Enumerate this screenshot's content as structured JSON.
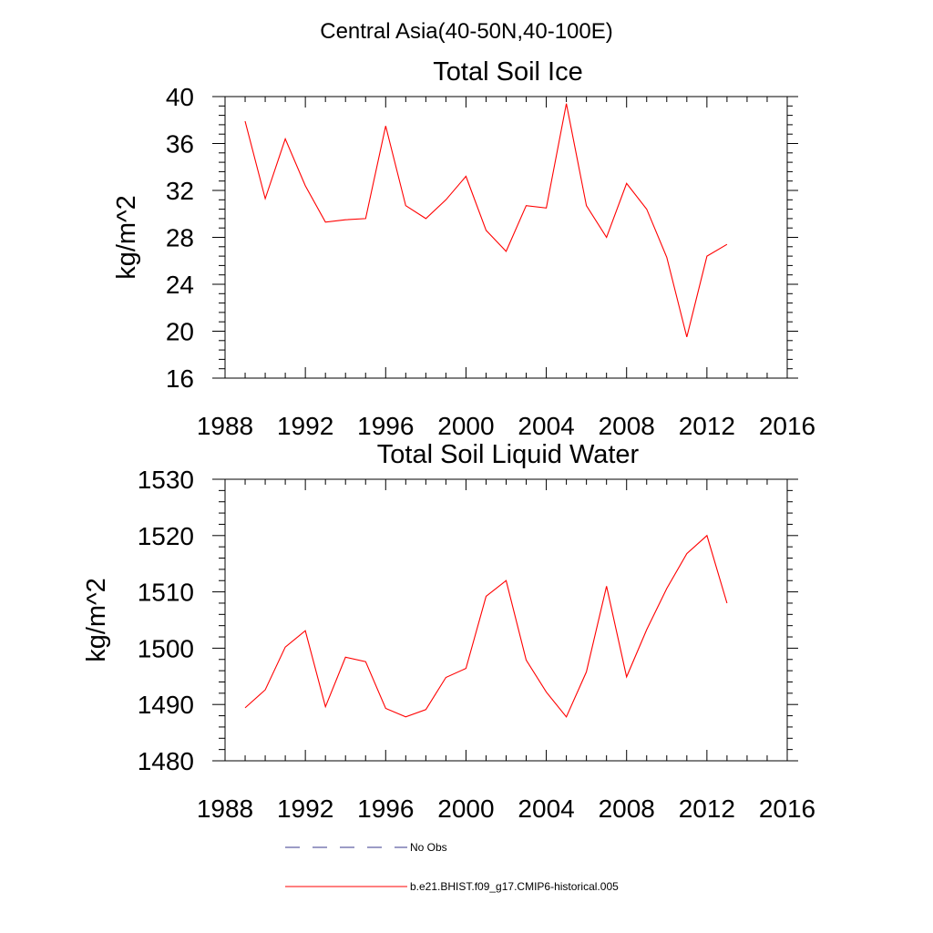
{
  "figure": {
    "title": "Central Asia(40-50N,40-100E)"
  },
  "legend": [
    {
      "label": "No Obs",
      "color": "#3a3a8c",
      "style": "dashed"
    },
    {
      "label": "b.e21.BHIST.f09_g17.CMIP6-historical.005",
      "color": "#ff0000",
      "style": "solid"
    }
  ],
  "chart_data": [
    {
      "type": "line",
      "title": "Total Soil Ice",
      "xlabel": "",
      "ylabel": "kg/m^2",
      "xlim": [
        1988,
        2016
      ],
      "ylim": [
        16,
        40
      ],
      "xticks": [
        1988,
        1992,
        1996,
        2000,
        2004,
        2008,
        2012,
        2016
      ],
      "yticks": [
        16,
        20,
        24,
        28,
        32,
        36,
        40
      ],
      "grid": false,
      "series": [
        {
          "name": "b.e21.BHIST.f09_g17.CMIP6-historical.005",
          "color": "#ff0000",
          "x": [
            1989,
            1990,
            1991,
            1992,
            1993,
            1994,
            1995,
            1996,
            1997,
            1998,
            1999,
            2000,
            2001,
            2002,
            2003,
            2004,
            2005,
            2006,
            2007,
            2008,
            2009,
            2010,
            2011,
            2012,
            2013
          ],
          "y": [
            37.9,
            31.3,
            36.4,
            32.4,
            29.3,
            29.5,
            29.6,
            37.5,
            30.7,
            29.6,
            31.2,
            33.2,
            28.6,
            26.8,
            30.7,
            30.5,
            39.4,
            30.7,
            28.0,
            32.6,
            30.4,
            26.3,
            19.5,
            26.4,
            27.4
          ]
        }
      ]
    },
    {
      "type": "line",
      "title": "Total Soil Liquid Water",
      "xlabel": "",
      "ylabel": "kg/m^2",
      "xlim": [
        1988,
        2016
      ],
      "ylim": [
        1480,
        1530
      ],
      "xticks": [
        1988,
        1992,
        1996,
        2000,
        2004,
        2008,
        2012,
        2016
      ],
      "yticks": [
        1480,
        1490,
        1500,
        1510,
        1520,
        1530
      ],
      "grid": false,
      "series": [
        {
          "name": "b.e21.BHIST.f09_g17.CMIP6-historical.005",
          "color": "#ff0000",
          "x": [
            1989,
            1990,
            1991,
            1992,
            1993,
            1994,
            1995,
            1996,
            1997,
            1998,
            1999,
            2000,
            2001,
            2002,
            2003,
            2004,
            2005,
            2006,
            2007,
            2008,
            2009,
            2010,
            2011,
            2012,
            2013
          ],
          "y": [
            1489.4,
            1492.6,
            1500.2,
            1503.1,
            1489.6,
            1498.4,
            1497.6,
            1489.3,
            1487.8,
            1489.1,
            1494.8,
            1496.4,
            1509.2,
            1512.0,
            1497.9,
            1492.2,
            1487.8,
            1495.8,
            1511.0,
            1494.9,
            1503.3,
            1510.6,
            1516.8,
            1520.0,
            1508.0
          ]
        }
      ]
    }
  ]
}
